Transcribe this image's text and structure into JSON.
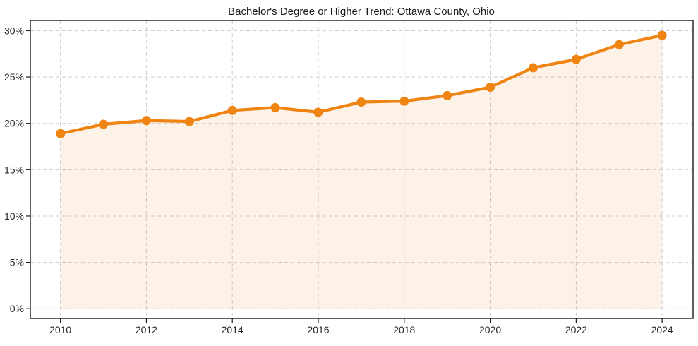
{
  "chart_data": {
    "type": "line",
    "title": "Bachelor's Degree or Higher Trend: Ottawa County, Ohio",
    "x": [
      2010,
      2011,
      2012,
      2013,
      2014,
      2015,
      2016,
      2017,
      2018,
      2019,
      2020,
      2021,
      2022,
      2023,
      2024
    ],
    "values": [
      18.9,
      19.9,
      20.3,
      20.2,
      21.4,
      21.7,
      21.2,
      22.3,
      22.4,
      23.0,
      23.9,
      26.0,
      26.9,
      28.5,
      29.5
    ],
    "unit": "%",
    "xlabel": "",
    "ylabel": "",
    "xticks": {
      "values": [
        2010,
        2012,
        2014,
        2016,
        2018,
        2020,
        2022,
        2024
      ],
      "labels": [
        "2010",
        "2012",
        "2014",
        "2016",
        "2018",
        "2020",
        "2022",
        "2024"
      ]
    },
    "yticks": {
      "values": [
        0,
        5,
        10,
        15,
        20,
        25,
        30
      ],
      "labels": [
        "0%",
        "5%",
        "10%",
        "15%",
        "20%",
        "25%",
        "30%"
      ]
    },
    "xlim": [
      2009.3,
      2024.72
    ],
    "ylim": [
      -1.05,
      31.1
    ],
    "grid": "dashed-both-axes",
    "legend": "none",
    "area_fill_to": 0,
    "colors": {
      "line": "#F08412",
      "marker": "#F08412",
      "area_fill": "rgba(240,132,18,0.10)",
      "grid": "#cdcdcd",
      "spine": "#1a1a1a",
      "tick_label": "#262626",
      "title": "#1a1a1a",
      "background": "#ffffff"
    }
  }
}
